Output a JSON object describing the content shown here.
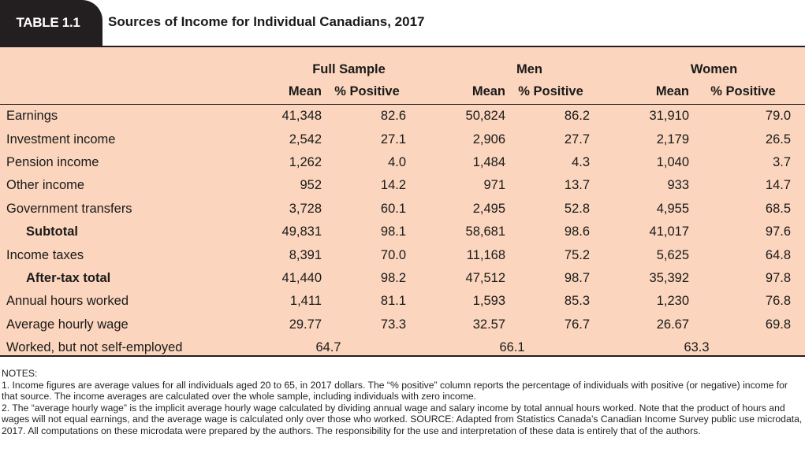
{
  "header": {
    "tab_label": "TABLE 1.1",
    "title": "Sources of Income for Individual Canadians, 2017"
  },
  "table": {
    "groups": [
      "Full Sample",
      "Men",
      "Women"
    ],
    "subheaders": [
      "Mean",
      "% Positive",
      "Mean",
      "% Positive",
      "Mean",
      "% Positive"
    ],
    "rows": [
      {
        "label": "Earnings",
        "values": [
          "41,348",
          "82.6",
          "50,824",
          "86.2",
          "31,910",
          "79.0"
        ]
      },
      {
        "label": "Investment income",
        "values": [
          "2,542",
          "27.1",
          "2,906",
          "27.7",
          "2,179",
          "26.5"
        ]
      },
      {
        "label": "Pension income",
        "values": [
          "1,262",
          "4.0",
          "1,484",
          "4.3",
          "1,040",
          "3.7"
        ]
      },
      {
        "label": "Other income",
        "values": [
          "952",
          "14.2",
          "971",
          "13.7",
          "933",
          "14.7"
        ]
      },
      {
        "label": "Government transfers",
        "values": [
          "3,728",
          "60.1",
          "2,495",
          "52.8",
          "4,955",
          "68.5"
        ]
      },
      {
        "label": "Subtotal",
        "values": [
          "49,831",
          "98.1",
          "58,681",
          "98.6",
          "41,017",
          "97.6"
        ]
      },
      {
        "label": "Income taxes",
        "values": [
          "8,391",
          "70.0",
          "11,168",
          "75.2",
          "5,625",
          "64.8"
        ]
      },
      {
        "label": "After-tax total",
        "values": [
          "41,440",
          "98.2",
          "47,512",
          "98.7",
          "35,392",
          "97.8"
        ]
      },
      {
        "label": "Annual hours worked",
        "values": [
          "1,411",
          "81.1",
          "1,593",
          "85.3",
          "1,230",
          "76.8"
        ]
      },
      {
        "label": "Average hourly wage",
        "values": [
          "29.77",
          "73.3",
          "32.57",
          "76.7",
          "26.67",
          "69.8"
        ]
      },
      {
        "label": "Worked, but not self-employed",
        "values": [
          "64.7",
          "66.1",
          "63.3"
        ]
      }
    ]
  },
  "notes": {
    "heading": "NOTES:",
    "note1": "1. Income figures are average values for all individuals aged 20 to 65, in 2017 dollars. The “% positive” column reports the percentage of individuals with positive (or negative) income for that source. The income averages are calculated over the whole sample, including individuals with zero income.",
    "note2": "2. The “average hourly wage” is the implicit average hourly wage calculated by dividing annual wage and salary income by total annual hours worked. Note that the product of hours and wages will not equal earnings, and the average wage is calculated only over those who worked. SOURCE: Adapted from Statistics Canada’s Canadian Income Survey public use microdata, 2017. All computations on these microdata were prepared by the authors. The responsibility for the use and interpretation of these data is entirely that of the authors."
  }
}
